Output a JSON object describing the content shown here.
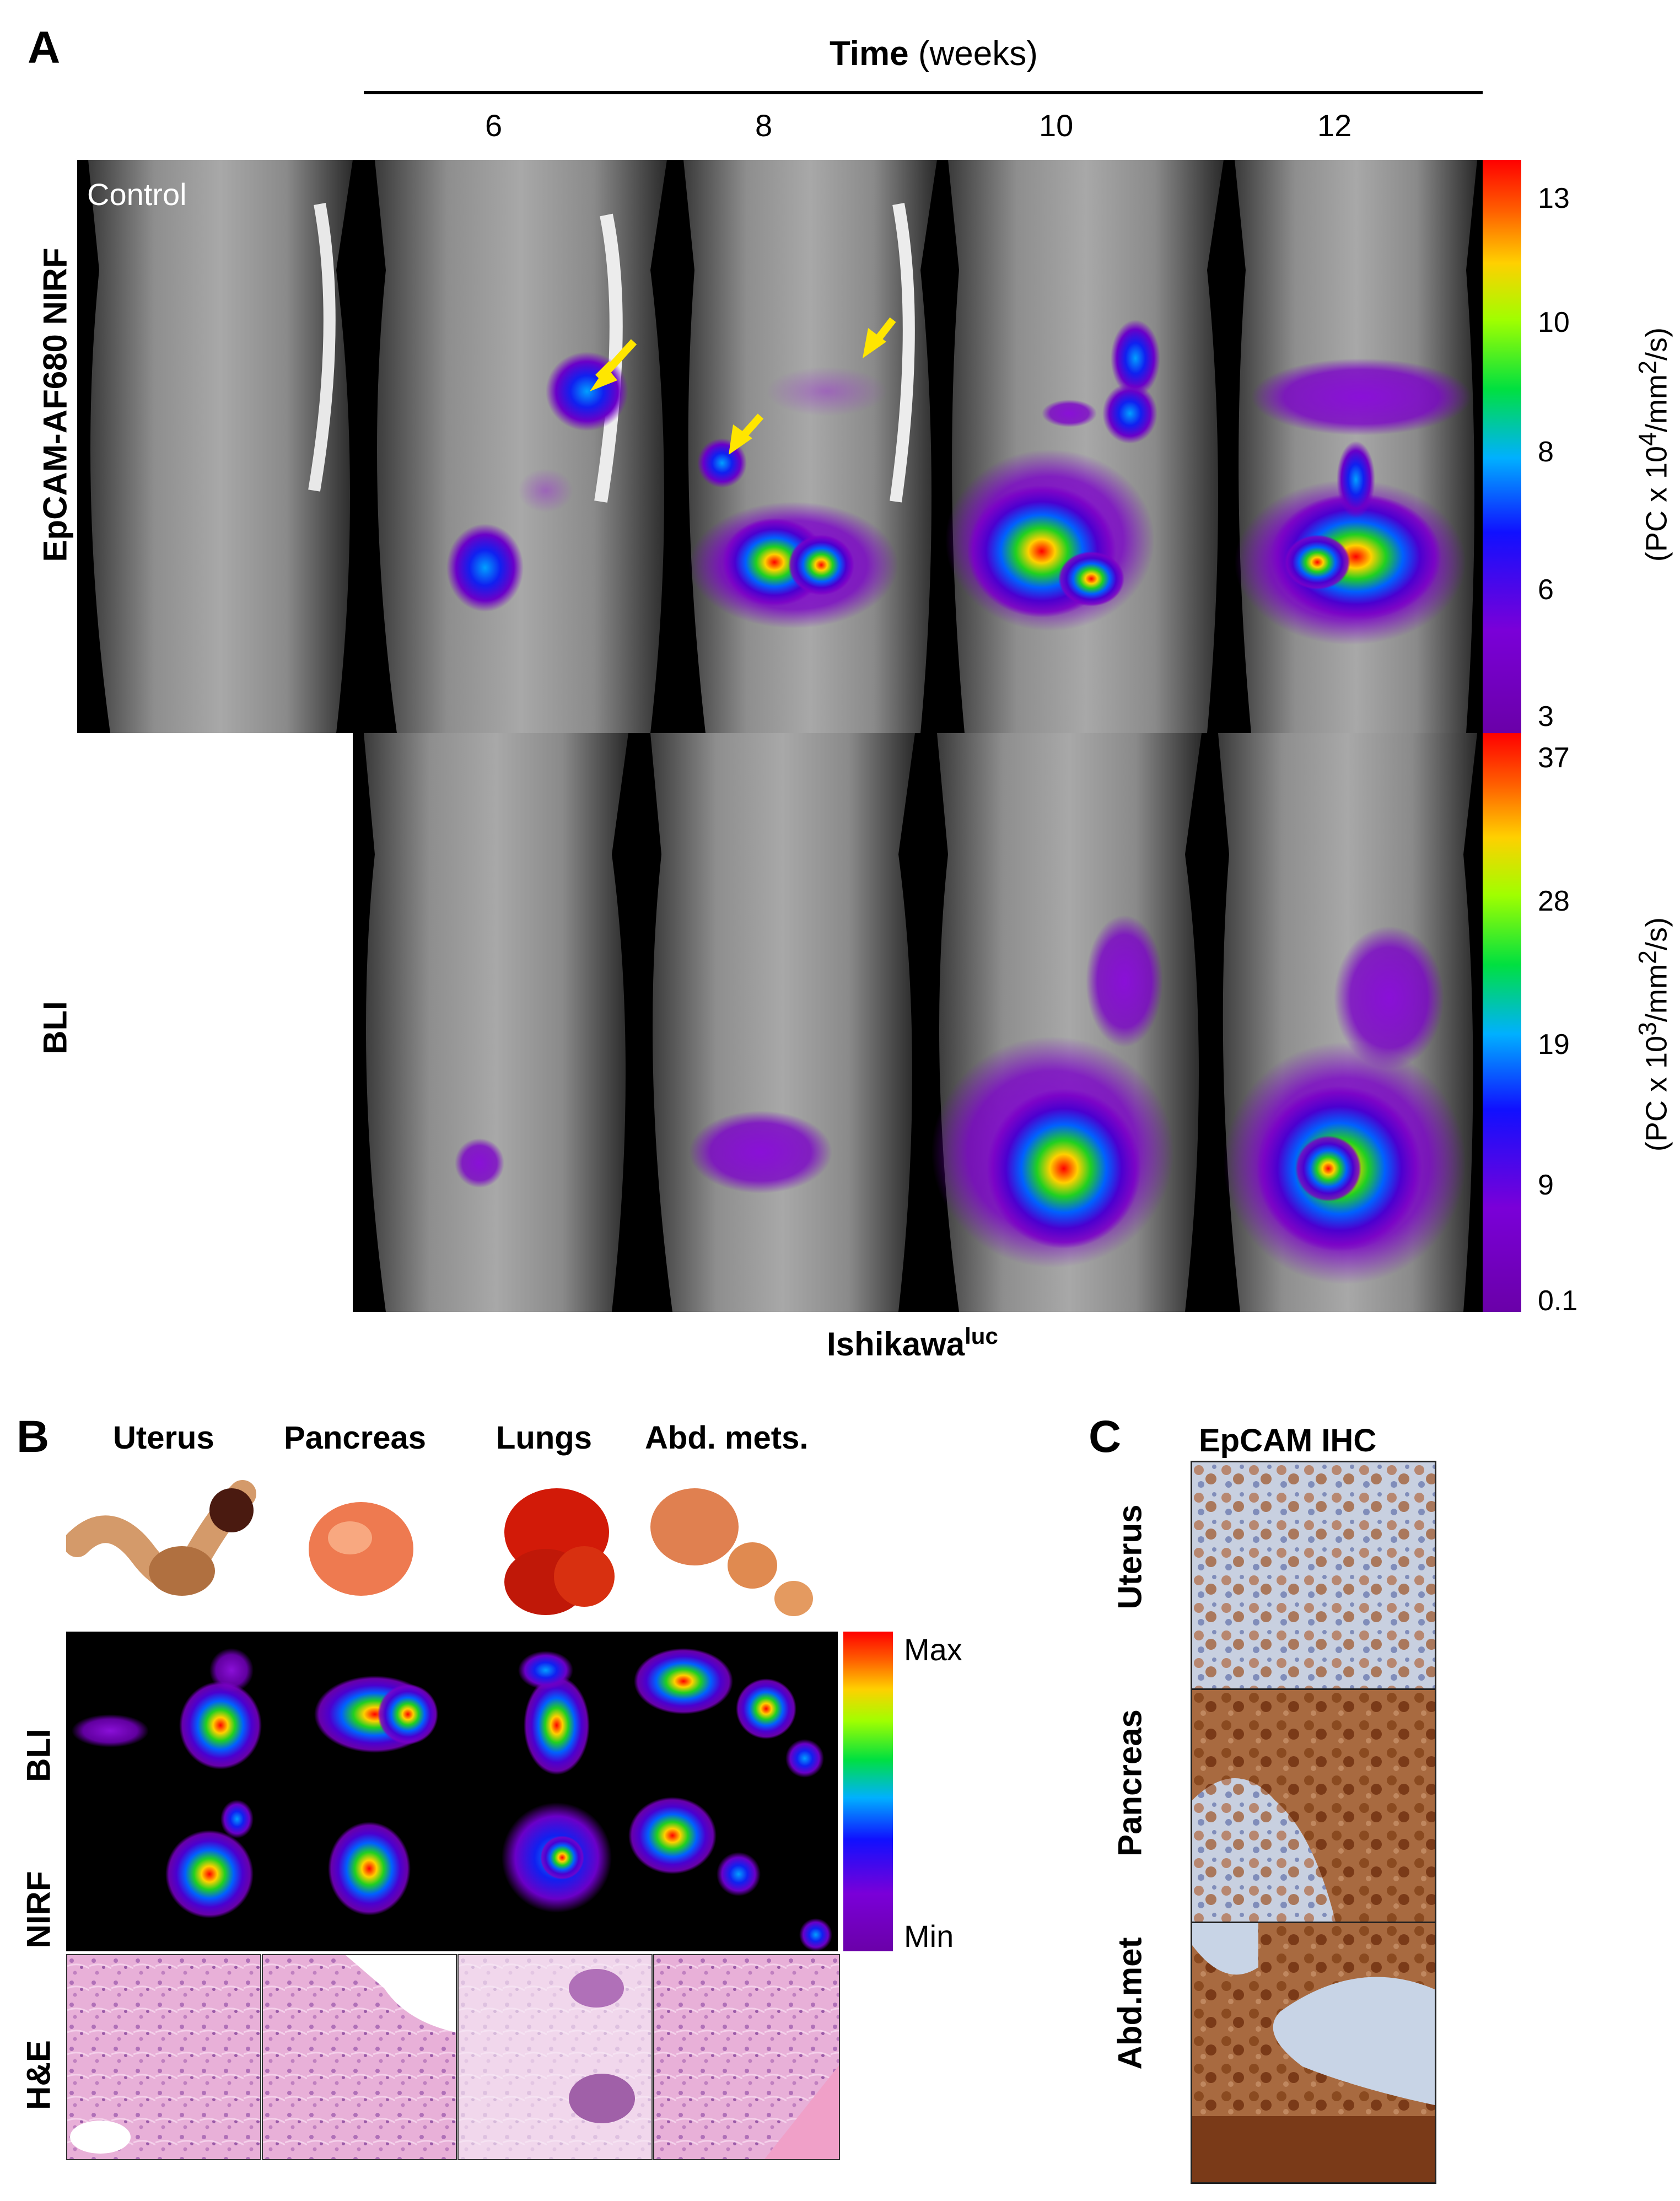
{
  "panel_a": {
    "letter": "A",
    "time_title_bold": "Time",
    "time_title_rest": " (weeks)",
    "weeks": [
      "6",
      "8",
      "10",
      "12"
    ],
    "control_label": "Control",
    "row_labels": [
      "EpCAM-AF680 NIRF",
      "BLI"
    ],
    "cell_line": "Ishikawa",
    "cell_line_sup": "luc",
    "nirf_scale": {
      "ticks": [
        "13",
        "10",
        "8",
        "6",
        "3"
      ],
      "units_prefix": "(PC x 10",
      "units_sup1": "4",
      "units_mid": "/mm",
      "units_sup2": "2",
      "units_suffix": "/s)"
    },
    "bli_scale": {
      "ticks": [
        "37",
        "28",
        "19",
        "9",
        "0.1"
      ],
      "units_prefix": "(PC x 10",
      "units_sup1": "3",
      "units_mid": "/mm",
      "units_sup2": "2",
      "units_suffix": "/s)"
    },
    "arrow_color": "#ffe600"
  },
  "panel_b": {
    "letter": "B",
    "columns": [
      "Uterus",
      "Pancreas",
      "Lungs",
      "Abd. mets."
    ],
    "row_labels": [
      "BLI",
      "NIRF",
      "H&E"
    ],
    "scale_max": "Max",
    "scale_min": "Min"
  },
  "panel_c": {
    "letter": "C",
    "title": "EpCAM IHC",
    "row_labels": [
      "Uterus",
      "Pancreas",
      "Abd.met"
    ]
  },
  "colors": {
    "heat_red": "#ff0000",
    "heat_yellow": "#ffff00",
    "heat_green": "#00e000",
    "heat_blue": "#0040ff",
    "heat_purple": "#7a00c8",
    "he_pink": "#e6a7d4",
    "ihc_brown": "#a35a2e",
    "ihc_blue": "#b8c8e0"
  }
}
